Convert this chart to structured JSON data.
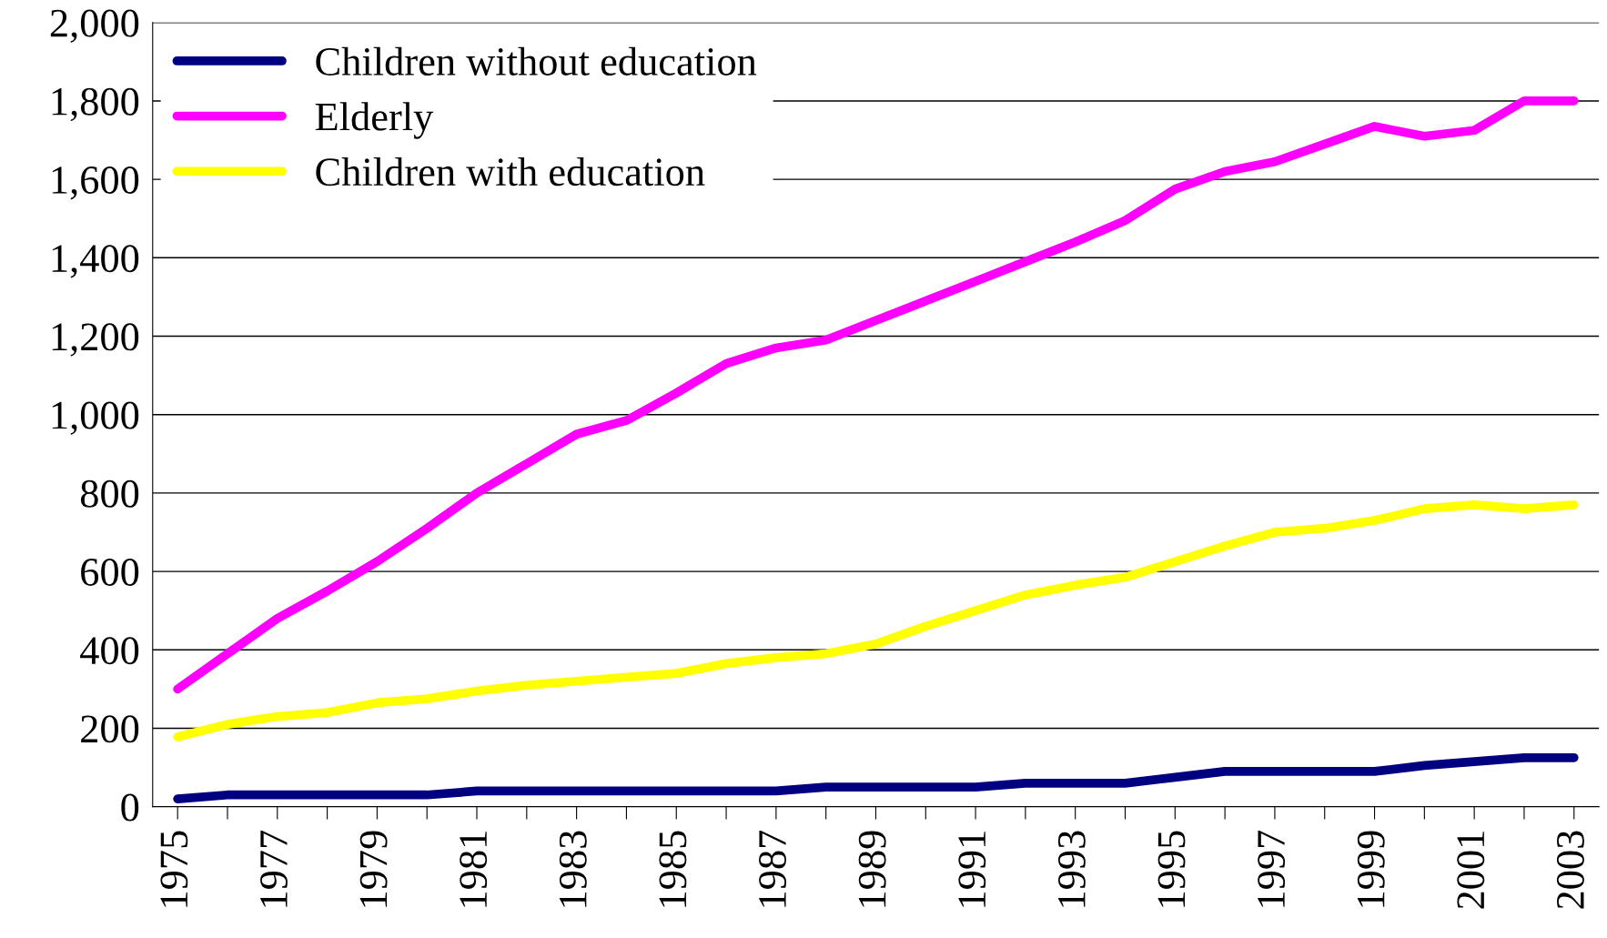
{
  "chart_data": {
    "type": "line",
    "categories": [
      "1975",
      null,
      "1977",
      null,
      "1979",
      null,
      "1981",
      null,
      "1983",
      null,
      "1985",
      null,
      "1987",
      null,
      "1989",
      null,
      "1991",
      null,
      "1993",
      null,
      "1995",
      null,
      "1997",
      null,
      "1999",
      null,
      "2001",
      null,
      "2003"
    ],
    "series": [
      {
        "name": "Children without education",
        "color": "#000080",
        "values": [
          20,
          30,
          30,
          30,
          30,
          30,
          40,
          40,
          40,
          40,
          40,
          40,
          40,
          50,
          50,
          50,
          50,
          60,
          60,
          60,
          75,
          90,
          90,
          90,
          90,
          105,
          115,
          125,
          125
        ]
      },
      {
        "name": "Elderly",
        "color": "#ff00ff",
        "values": [
          300,
          390,
          480,
          550,
          625,
          710,
          800,
          875,
          950,
          985,
          1055,
          1130,
          1170,
          1190,
          1240,
          1290,
          1340,
          1390,
          1440,
          1495,
          1575,
          1620,
          1645,
          1690,
          1735,
          1710,
          1725,
          1800,
          1800
        ]
      },
      {
        "name": "Children with education",
        "color": "#ffff00",
        "values": [
          178,
          210,
          230,
          240,
          265,
          275,
          295,
          310,
          320,
          330,
          340,
          365,
          380,
          390,
          415,
          460,
          500,
          540,
          565,
          585,
          625,
          665,
          700,
          710,
          730,
          760,
          770,
          760,
          770
        ]
      }
    ],
    "ylim": [
      0,
      2000
    ],
    "yticks": [
      {
        "value": 0,
        "label": "0"
      },
      {
        "value": 200,
        "label": "200"
      },
      {
        "value": 400,
        "label": "400"
      },
      {
        "value": 600,
        "label": "600"
      },
      {
        "value": 800,
        "label": "800"
      },
      {
        "value": 1000,
        "label": "1,000"
      },
      {
        "value": 1200,
        "label": "1,200"
      },
      {
        "value": 1400,
        "label": "1,400"
      },
      {
        "value": 1600,
        "label": "1,600"
      },
      {
        "value": 1800,
        "label": "1,800"
      },
      {
        "value": 2000,
        "label": "2,000"
      }
    ],
    "grid": "y",
    "legend": "top left",
    "marker": "none",
    "line_style": "solid"
  }
}
